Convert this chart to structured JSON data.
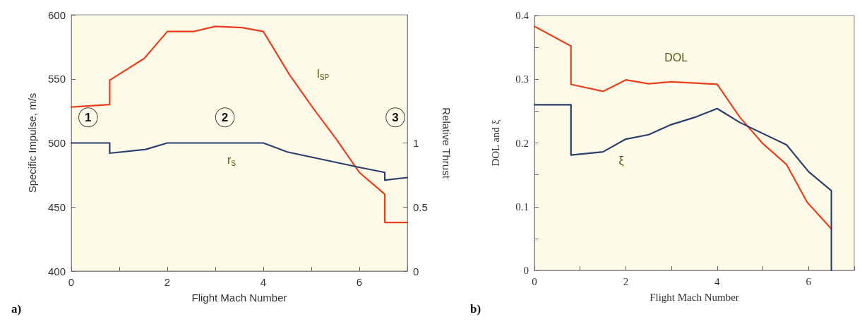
{
  "chart_data": [
    {
      "type": "line",
      "xlabel": "Flight Mach Number",
      "ylabel": "Specific Impulse, m/s",
      "y2label": "Relative Thrust",
      "xlim": [
        0,
        7
      ],
      "xticks": [
        0,
        {
          "value": 1,
          "label": null
        },
        2,
        {
          "value": 3,
          "label": null
        },
        4,
        {
          "value": 5,
          "label": null
        },
        6,
        {
          "value": 7,
          "label": null
        }
      ],
      "ylim": [
        400,
        600
      ],
      "yticks": [
        400,
        450,
        500,
        550,
        600
      ],
      "y2lim": [
        0,
        2
      ],
      "y2ticks": [
        0,
        0.5,
        1
      ],
      "series": [
        {
          "name": "I$_{SP}$",
          "color": "#e8401c",
          "x": [
            0,
            0.8,
            0.8,
            1.52,
            2,
            2.55,
            3,
            3.56,
            4,
            4.55,
            5.02,
            5.52,
            6,
            6.53,
            6.53,
            7
          ],
          "values": [
            528,
            530,
            549,
            566,
            587,
            587,
            591,
            590,
            587,
            553,
            528,
            503,
            477,
            460,
            438,
            438
          ]
        },
        {
          "name": "r$_{S}$",
          "color": "#2c3e6e",
          "axis": "y2",
          "x": [
            0,
            0.8,
            0.8,
            1.55,
            2,
            4,
            4.5,
            6,
            6.53,
            6.53,
            7
          ],
          "values": [
            1.0,
            1.0,
            0.92,
            0.95,
            1.0,
            1.0,
            0.93,
            0.81,
            0.77,
            0.71,
            0.73
          ]
        }
      ],
      "annotations": [
        {
          "text": "1",
          "x": 0.35,
          "y": 520
        },
        {
          "text": "2",
          "x": 3.2,
          "y": 520
        },
        {
          "text": "3",
          "x": 6.75,
          "y": 520
        },
        "a)"
      ]
    },
    {
      "type": "line",
      "xlabel": "Flight Mach Number",
      "ylabel": "DOL and ξ",
      "xlim": [
        0,
        7
      ],
      "xticks": [
        0,
        {
          "value": 1,
          "label": null
        },
        2,
        {
          "value": 3,
          "label": null
        },
        4,
        {
          "value": 5,
          "label": null
        },
        6,
        {
          "value": 7,
          "label": null
        }
      ],
      "ylim": [
        0,
        0.4
      ],
      "yticks": [
        0,
        {
          "value": 0.05,
          "label": null
        },
        0.1,
        {
          "value": 0.15,
          "label": null
        },
        0.2,
        {
          "value": 0.25,
          "label": null
        },
        0.3,
        {
          "value": 0.35,
          "label": null
        },
        0.4
      ],
      "series": [
        {
          "name": "DOL",
          "color": "#e8401c",
          "x": [
            0,
            0.8,
            0.8,
            1.5,
            2,
            2.5,
            3,
            4,
            4.5,
            5,
            5.52,
            5.97,
            6.5
          ],
          "values": [
            0.383,
            0.352,
            0.292,
            0.281,
            0.299,
            0.293,
            0.296,
            0.292,
            0.24,
            0.199,
            0.166,
            0.107,
            0.065
          ]
        },
        {
          "name": "ξ",
          "color": "#2c3e6e",
          "x": [
            0,
            0.8,
            0.8,
            1.5,
            2,
            2.5,
            3,
            3.5,
            4,
            4.5,
            5.52,
            6,
            6.5,
            6.5
          ],
          "values": [
            0.26,
            0.26,
            0.181,
            0.186,
            0.206,
            0.213,
            0.229,
            0.24,
            0.254,
            0.232,
            0.197,
            0.155,
            0.125,
            0
          ]
        }
      ],
      "annotations": [
        "b)"
      ]
    }
  ]
}
